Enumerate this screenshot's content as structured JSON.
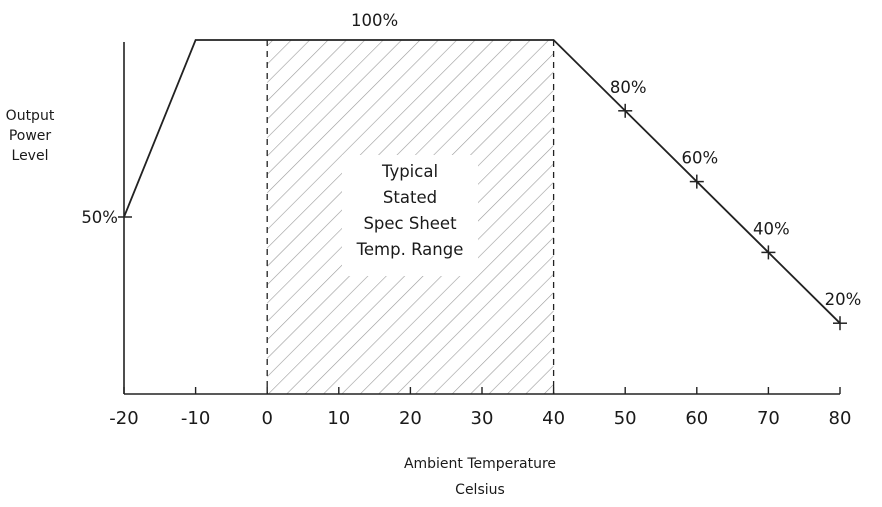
{
  "chart_data": {
    "type": "line",
    "title": "",
    "ylabel": [
      "Output",
      "Power",
      "Level"
    ],
    "xlabel": [
      "Ambient Temperature",
      "Celsius"
    ],
    "xlim": [
      -20,
      80
    ],
    "x_ticks": [
      "-20",
      "-10",
      "0",
      "10",
      "20",
      "30",
      "40",
      "50",
      "60",
      "70",
      "80"
    ],
    "series": [
      {
        "x": [
          -20,
          -10,
          40,
          80
        ],
        "y": [
          50,
          100,
          100,
          20
        ]
      }
    ],
    "point_labels": [
      {
        "x": -20,
        "y": 50,
        "label": "50%"
      },
      {
        "x": 15,
        "y": 100,
        "label": "100%"
      },
      {
        "x": 50,
        "y": 80,
        "label": "80%"
      },
      {
        "x": 60,
        "y": 60,
        "label": "60%"
      },
      {
        "x": 70,
        "y": 40,
        "label": "40%"
      },
      {
        "x": 80,
        "y": 20,
        "label": "20%"
      }
    ],
    "shaded_region": {
      "x_start": 0,
      "x_end": 40,
      "label": [
        "Typical",
        "Stated",
        "Spec Sheet",
        "Temp. Range"
      ]
    },
    "grid": false
  }
}
